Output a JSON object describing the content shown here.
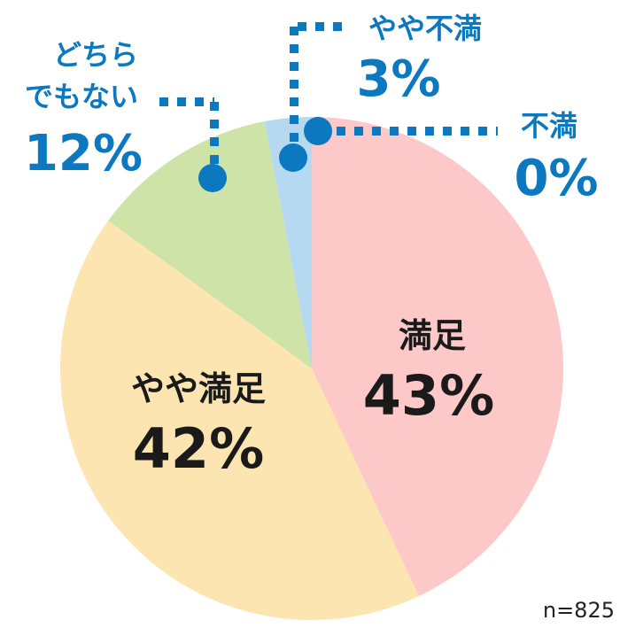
{
  "chart_data": {
    "type": "pie",
    "n_label": "n=825",
    "slices": [
      {
        "label": "満足",
        "value": 43,
        "value_label": "43%",
        "color": "#fcc8c8"
      },
      {
        "label": "やや満足",
        "value": 42,
        "value_label": "42%",
        "color": "#fce5b0"
      },
      {
        "label": "どちらでもない",
        "label_lines": [
          "どちら",
          "でもない"
        ],
        "value": 12,
        "value_label": "12%",
        "color": "#cde3a8"
      },
      {
        "label": "やや不満",
        "value": 3,
        "value_label": "3%",
        "color": "#b5d9f0"
      },
      {
        "label": "不満",
        "value": 0,
        "value_label": "0%",
        "color": "#9ec4e6"
      }
    ],
    "callout_color": "#0b78c0"
  }
}
